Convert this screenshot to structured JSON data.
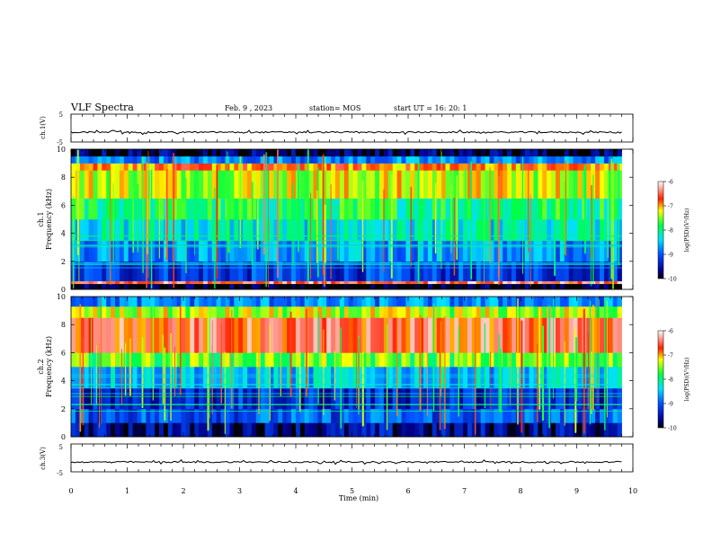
{
  "header": {
    "title": "VLF Spectra",
    "date": "Feb. 9 , 2023",
    "station": "station= MOS",
    "start_ut": "start UT = 16: 20: 1"
  },
  "chart_data": [
    {
      "type": "line",
      "name": "ch1-waveform",
      "ylabel": "ch.1(V)",
      "ylim": [
        -5,
        5
      ],
      "yticks": [
        "5",
        "-5"
      ],
      "xlim": [
        0,
        10
      ],
      "mean_level_v": -1.5
    },
    {
      "type": "heatmap",
      "name": "ch1-spectrogram",
      "ylabel": "ch.1\nFrequency (kHz)",
      "ylabel_line1": "ch.1",
      "ylabel_line2": "Frequency (kHz)",
      "ylim": [
        0,
        10
      ],
      "yticks": [
        "0",
        "2",
        "4",
        "6",
        "8",
        "10"
      ],
      "xlim": [
        0,
        10
      ],
      "data_end_min": 9.8,
      "colorbar": {
        "label": "log(PSD)(V²/Hz)",
        "ticks": [
          "-6",
          "-7",
          "-8",
          "-9",
          "-10"
        ],
        "range": [
          -10,
          -6
        ]
      },
      "bands_khz": [
        {
          "from": 0.0,
          "to": 0.4,
          "log_psd": -10
        },
        {
          "from": 0.4,
          "to": 0.6,
          "log_psd": -6.5
        },
        {
          "from": 0.6,
          "to": 2.0,
          "log_psd": -9.2
        },
        {
          "from": 2.0,
          "to": 3.5,
          "log_psd": -8.7
        },
        {
          "from": 3.5,
          "to": 5.0,
          "log_psd": -8.3
        },
        {
          "from": 5.0,
          "to": 6.5,
          "log_psd": -7.9
        },
        {
          "from": 6.5,
          "to": 8.5,
          "log_psd": -7.3
        },
        {
          "from": 8.5,
          "to": 9.0,
          "log_psd": -6.9
        },
        {
          "from": 9.0,
          "to": 9.5,
          "log_psd": -8.8
        },
        {
          "from": 9.5,
          "to": 10.0,
          "log_psd": -9.8
        }
      ]
    },
    {
      "type": "heatmap",
      "name": "ch2-spectrogram",
      "ylabel": "ch.2\nFrequency (kHz)",
      "ylabel_line1": "ch.2",
      "ylabel_line2": "Frequency (kHz)",
      "ylim": [
        0,
        10
      ],
      "yticks": [
        "0",
        "2",
        "4",
        "6",
        "8",
        "10"
      ],
      "xlim": [
        0,
        10
      ],
      "data_end_min": 9.8,
      "colorbar": {
        "label": "log(PSD)(V²/Hz)",
        "ticks": [
          "-6",
          "-7",
          "-8",
          "-9",
          "-10"
        ],
        "range": [
          -10,
          -6
        ]
      },
      "bands_khz": [
        {
          "from": 0.0,
          "to": 1.0,
          "log_psd": -9.6
        },
        {
          "from": 1.0,
          "to": 2.0,
          "log_psd": -9.0
        },
        {
          "from": 2.0,
          "to": 3.5,
          "log_psd": -9.3
        },
        {
          "from": 3.5,
          "to": 5.0,
          "log_psd": -8.5
        },
        {
          "from": 5.0,
          "to": 6.0,
          "log_psd": -7.6
        },
        {
          "from": 6.0,
          "to": 8.5,
          "log_psd": -6.6
        },
        {
          "from": 8.5,
          "to": 9.3,
          "log_psd": -7.4
        },
        {
          "from": 9.3,
          "to": 10.0,
          "log_psd": -8.8
        }
      ]
    },
    {
      "type": "line",
      "name": "ch3-waveform",
      "ylabel": "ch.3(V)",
      "ylim": [
        -5,
        5
      ],
      "yticks": [
        "5",
        "-5"
      ],
      "xlim": [
        0,
        10
      ],
      "mean_level_v": -1.5
    }
  ],
  "x_axis": {
    "label": "Time (min)",
    "ticks": [
      "0",
      "1",
      "2",
      "3",
      "4",
      "5",
      "6",
      "7",
      "8",
      "9",
      "10"
    ]
  }
}
